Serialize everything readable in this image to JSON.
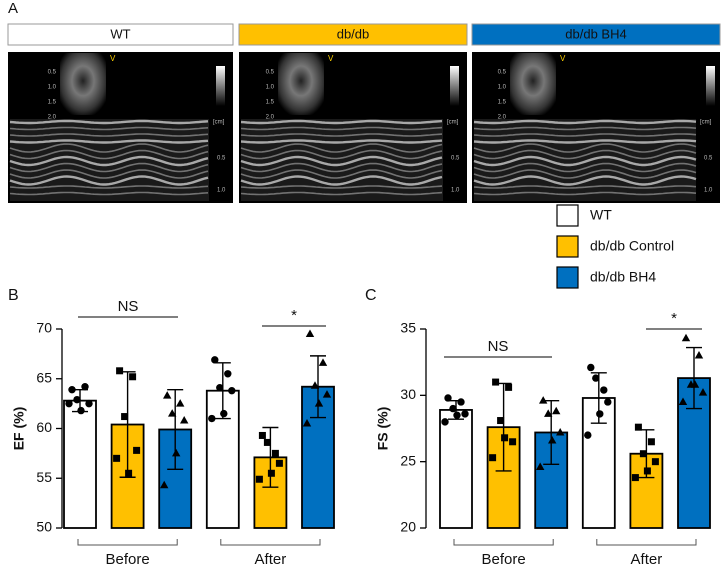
{
  "panel_a": {
    "label": "A",
    "groups": [
      "WT",
      "db/db",
      "db/db BH4"
    ],
    "group_colors": [
      "#ffffff",
      "#ffc000",
      "#0070c0"
    ],
    "inset_ticks": [
      "0.5",
      "1.0",
      "1.5",
      "2.0"
    ],
    "mmode_unit": "[cm]",
    "mmode_ticks": [
      "0.5",
      "1.0"
    ],
    "marker": "V"
  },
  "chart_data": [
    {
      "type": "bar",
      "panel": "B",
      "ylabel": "EF (%)",
      "categories": [
        "Before",
        "After"
      ],
      "ylim": [
        50,
        70
      ],
      "yticks": [
        50,
        55,
        60,
        65,
        70
      ],
      "series": [
        {
          "name": "WT",
          "color": "#ffffff",
          "marker": "circle",
          "values": [
            62.8,
            63.8
          ],
          "errors": [
            1.1,
            2.8
          ],
          "points": [
            [
              63.9,
              64.2,
              62.9,
              62.5,
              61.8,
              62.5
            ],
            [
              66.9,
              65.5,
              64.1,
              63.8,
              61.5,
              61.0
            ]
          ]
        },
        {
          "name": "db/db Control",
          "color": "#ffc000",
          "marker": "square",
          "values": [
            60.4,
            57.1
          ],
          "errors": [
            5.3,
            3.0
          ],
          "points": [
            [
              65.8,
              65.2,
              61.2,
              57.8,
              55.5,
              57.0
            ],
            [
              59.3,
              57.5,
              58.6,
              56.5,
              55.5,
              54.9
            ]
          ]
        },
        {
          "name": "db/db BH4",
          "color": "#0070c0",
          "marker": "triangle",
          "values": [
            59.9,
            64.2
          ],
          "errors": [
            4.0,
            3.1
          ],
          "points": [
            [
              63.3,
              62.5,
              61.5,
              60.8,
              57.5,
              54.3
            ],
            [
              69.5,
              66.6,
              64.3,
              63.4,
              62.5,
              60.5
            ]
          ]
        }
      ],
      "annotations": [
        {
          "text": "NS"
        },
        {
          "text": "*"
        }
      ]
    },
    {
      "type": "bar",
      "panel": "C",
      "ylabel": "FS (%)",
      "categories": [
        "Before",
        "After"
      ],
      "ylim": [
        20,
        35
      ],
      "yticks": [
        20,
        25,
        30,
        35
      ],
      "series": [
        {
          "color": "#ffffff",
          "marker": "circle",
          "values": [
            28.9,
            29.8
          ],
          "errors": [
            0.7,
            1.9
          ],
          "points": [
            [
              29.8,
              29.5,
              29.0,
              28.6,
              28.5,
              28.0
            ],
            [
              32.1,
              30.4,
              31.3,
              29.5,
              28.6,
              27.0
            ]
          ]
        },
        {
          "color": "#ffc000",
          "marker": "square",
          "values": [
            27.6,
            25.6
          ],
          "errors": [
            3.3,
            1.8
          ],
          "points": [
            [
              31.0,
              30.6,
              28.1,
              26.5,
              26.8,
              25.3
            ],
            [
              27.6,
              26.5,
              25.6,
              25.0,
              24.3,
              23.8
            ]
          ]
        },
        {
          "color": "#0070c0",
          "marker": "triangle",
          "values": [
            27.2,
            31.3
          ],
          "errors": [
            2.4,
            2.3
          ],
          "points": [
            [
              29.6,
              28.8,
              28.6,
              27.2,
              26.6,
              24.6
            ],
            [
              34.3,
              33.0,
              30.8,
              30.2,
              30.8,
              29.5
            ]
          ]
        }
      ],
      "annotations": [
        {
          "text": "NS"
        },
        {
          "text": "*"
        }
      ]
    }
  ]
}
